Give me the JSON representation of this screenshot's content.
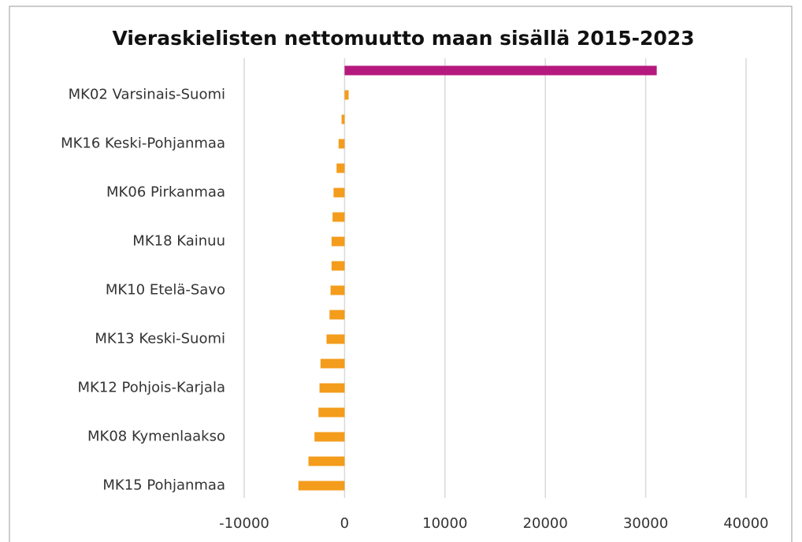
{
  "chart_data": {
    "type": "bar",
    "orientation": "horizontal",
    "title": "Vieraskielisten nettomuutto maan sisällä 2015-2023",
    "categories": [
      null,
      "MK02 Varsinais-Suomi",
      null,
      "MK16 Keski-Pohjanmaa",
      null,
      "MK06 Pirkanmaa",
      null,
      "MK18 Kainuu",
      null,
      "MK10 Etelä-Savo",
      null,
      "MK13 Keski-Suomi",
      null,
      "MK12 Pohjois-Karjala",
      null,
      "MK08 Kymenlaakso",
      null,
      "MK15 Pohjanmaa"
    ],
    "values": [
      31100,
      400,
      -300,
      -600,
      -800,
      -1100,
      -1200,
      -1300,
      -1300,
      -1400,
      -1500,
      -1800,
      -2400,
      -2500,
      -2600,
      -3000,
      -3600,
      -4600
    ],
    "colors": [
      "#b5197e",
      "#f49c1c",
      "#f49c1c",
      "#f49c1c",
      "#f49c1c",
      "#f49c1c",
      "#f49c1c",
      "#f49c1c",
      "#f49c1c",
      "#f49c1c",
      "#f49c1c",
      "#f49c1c",
      "#f49c1c",
      "#f49c1c",
      "#f49c1c",
      "#f49c1c",
      "#f49c1c",
      "#f49c1c"
    ],
    "xlim": [
      -10000,
      40000
    ],
    "xticks": [
      -10000,
      0,
      10000,
      20000,
      30000,
      40000
    ],
    "grid": true
  }
}
